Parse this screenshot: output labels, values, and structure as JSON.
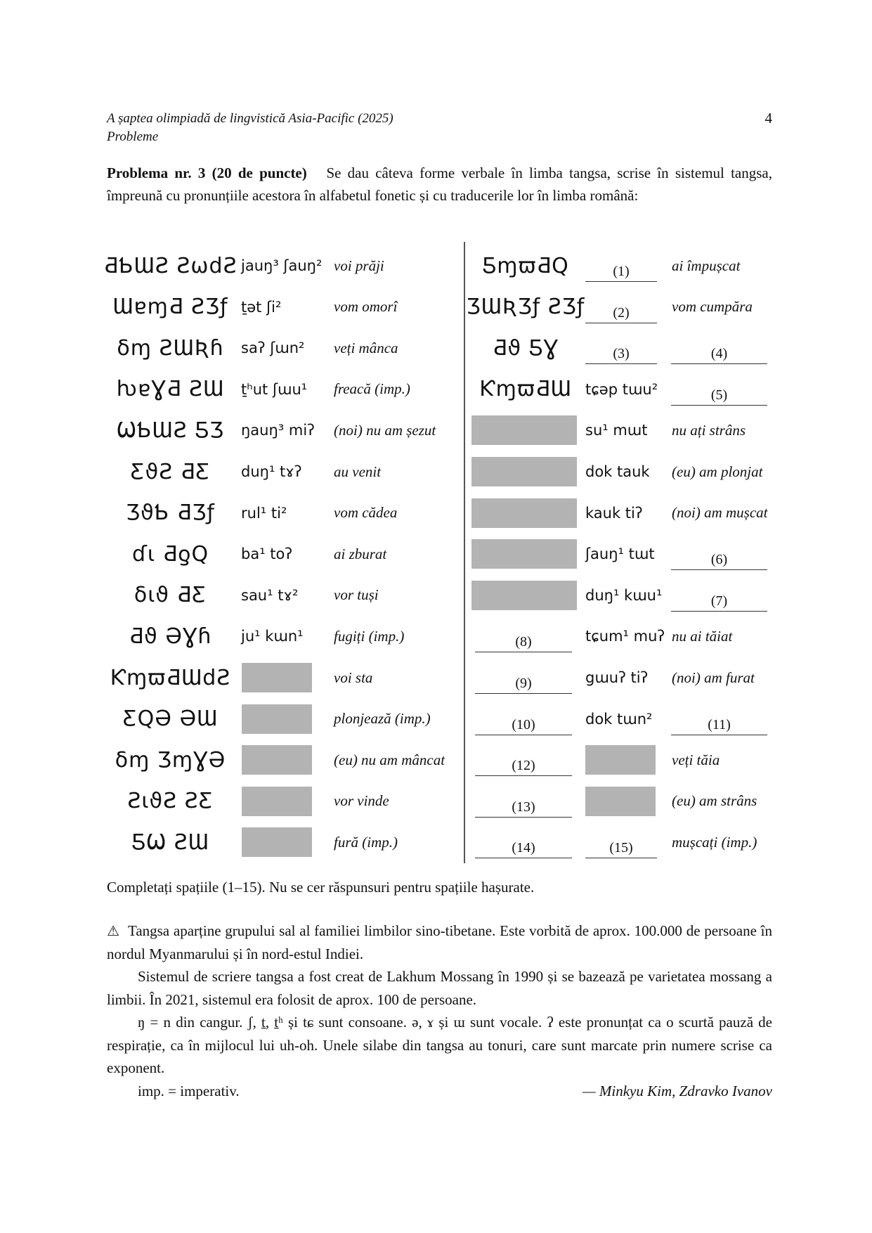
{
  "header": {
    "title": "A șaptea olimpiadă de lingvistică Asia-Pacific (2025)",
    "subtitle": "Probleme",
    "page_number": "4"
  },
  "problem": {
    "label": "Problema nr. 3 (20 de puncte)",
    "text": "Se dau câteva forme verbale în limba tangsa, scrise în sistemul tangsa, împreună cu pronunțiile acestora în alfabetul fonetic și cu traducerile lor în limba română:"
  },
  "left_rows": [
    {
      "script": "ƋƄƜƧ ƧѡdƧ",
      "ipa": "jauŋ³ ʃauŋ²",
      "tr": "voi prăji"
    },
    {
      "script": "ƜɐɱƋ ƧƷƒ",
      "ipa": "ṯət ʃi²",
      "tr": "vom omorî"
    },
    {
      "script": "δɱ ƧƜƦɦ",
      "ipa": "saʔ ʃɯn²",
      "tr": "veți mânca"
    },
    {
      "script": "ƕɐƔƋ ƧƜ",
      "ipa": "ṯʰut ʃɯu¹",
      "tr": "freacă (imp.)"
    },
    {
      "script": "ѠƄƜƧ ƼƷ",
      "ipa": "ŋauŋ³ miʔ",
      "tr": "(noi) nu am șezut"
    },
    {
      "script": "ƸϑƧ ƋƸ",
      "ipa": "duŋ¹ tɤʔ",
      "tr": "au venit"
    },
    {
      "script": "ƷϑƄ ƋƷƒ",
      "ipa": "rul¹ ti²",
      "tr": "vom cădea"
    },
    {
      "script": "ɗɩ ƋƍQ",
      "ipa": "ba¹ toʔ",
      "tr": "ai zburat"
    },
    {
      "script": "δɩϑ ƋƸ",
      "ipa": "sau¹ tɤ²",
      "tr": "vor tuși"
    },
    {
      "script": "Ƌϑ ƏƔɦ",
      "ipa": "ju¹ kɯn¹",
      "tr": "fugiți (imp.)"
    },
    {
      "script": "ƘɱϖƋƜdƧ",
      "ipa": "",
      "tr": "voi sta"
    },
    {
      "script": "ƸQƏ ƏƜ",
      "ipa": "",
      "tr": "plonjează (imp.)"
    },
    {
      "script": "δɱ ƷɱƔƏ",
      "ipa": "",
      "tr": "(eu) nu am mâncat"
    },
    {
      "script": "ƧɩϑƧ ƧƸ",
      "ipa": "",
      "tr": "vor vinde"
    },
    {
      "script": "ƼѠ ƧƜ",
      "ipa": "",
      "tr": "fură (imp.)"
    }
  ],
  "right_rows": [
    {
      "script": "ƼɱϖƋQ",
      "ipa": "",
      "blank_ipa": "(1)",
      "tr": "ai împușcat"
    },
    {
      "script": "ƷƜƦƷƒ ƧƷƒ",
      "ipa": "",
      "blank_ipa": "(2)",
      "tr": "vom cumpăra"
    },
    {
      "script": "Ƌϑ ƼƔ",
      "ipa": "",
      "blank_ipa": "(3)",
      "blank_tr": "(4)"
    },
    {
      "script": "ƘɱϖƋƜ",
      "ipa": "tɕəp tɯu²",
      "blank_tr": "(5)"
    },
    {
      "gray_script": true,
      "ipa": "su¹ mɯt",
      "tr": "nu ați strâns"
    },
    {
      "gray_script": true,
      "ipa": "dok tauk",
      "tr": "(eu) am plonjat"
    },
    {
      "gray_script": true,
      "ipa": "kauk tiʔ",
      "tr": "(noi) am mușcat"
    },
    {
      "gray_script": true,
      "ipa": "ʃauŋ¹ tɯt",
      "blank_tr": "(6)"
    },
    {
      "gray_script": true,
      "ipa": "duŋ¹ kɯu¹",
      "blank_tr": "(7)"
    },
    {
      "blank_script": "(8)",
      "ipa": "tɕum¹ muʔ",
      "tr": "nu ai tăiat"
    },
    {
      "blank_script": "(9)",
      "ipa": "gɯuʔ tiʔ",
      "tr": "(noi) am furat"
    },
    {
      "blank_script": "(10)",
      "ipa": "dok tɯn²",
      "blank_tr": "(11)"
    },
    {
      "blank_script": "(12)",
      "gray_ipa": true,
      "tr": "veți tăia"
    },
    {
      "blank_script": "(13)",
      "gray_ipa": true,
      "tr": "(eu) am strâns"
    },
    {
      "blank_script": "(14)",
      "blank_ipa": "(15)",
      "tr": "mușcați (imp.)"
    }
  ],
  "instruction": "Completați spațiile (1–15). Nu se cer răspunsuri pentru spațiile hașurate.",
  "notes": {
    "warning_icon": "warning-triangle-icon",
    "p1": "Tangsa aparține grupului sal al familiei limbilor sino-tibetane. Este vorbită de aprox. 100.000 de persoane în nordul Myanmarului și în nord-estul Indiei.",
    "p2": "Sistemul de scriere tangsa a fost creat de Lakhum Mossang în 1990 și se bazează pe varietatea mossang a limbii. În 2021, sistemul era folosit de aprox. 100 de persoane.",
    "p3": "ŋ = n din cangur. ʃ, ṯ, ṯʰ și tɕ sunt consoane. ə, ɤ și ɯ sunt vocale. ʔ este pronunțat ca o scurtă pauză de respirație, ca în mijlocul lui uh-oh. Unele silabe din tangsa au tonuri, care sunt marcate prin numere scrise ca exponent.",
    "p4": "imp. = imperativ.",
    "authors": "— Minkyu Kim, Zdravko Ivanov"
  }
}
